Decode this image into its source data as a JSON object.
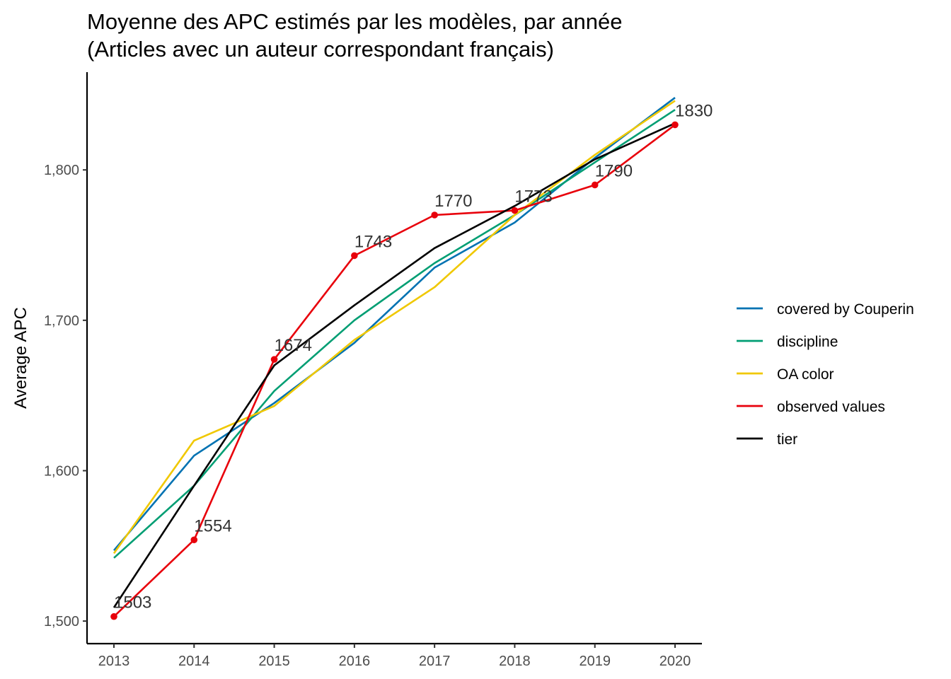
{
  "chart_data": {
    "type": "line",
    "title_lines": [
      "Moyenne des APC estimés par les modèles, par année",
      "(Articles avec un auteur correspondant français)"
    ],
    "xlabel": "",
    "ylabel": "Average APC",
    "x": [
      2013,
      2014,
      2015,
      2016,
      2017,
      2018,
      2019,
      2020
    ],
    "x_tick_labels": [
      "2013",
      "2014",
      "2015",
      "2016",
      "2017",
      "2018",
      "2019",
      "2020"
    ],
    "y_ticks": [
      1500,
      1600,
      1700,
      1800
    ],
    "y_tick_labels": [
      "1,500",
      "1,600",
      "1,700",
      "1,800"
    ],
    "ylim": [
      1485,
      1865
    ],
    "grid": false,
    "legend_position": "right",
    "series": [
      {
        "name": "covered by Couperin",
        "color": "#0072B2",
        "values": [
          1547,
          1610,
          1645,
          1685,
          1735,
          1765,
          1808,
          1848
        ]
      },
      {
        "name": "discipline",
        "color": "#009E73",
        "values": [
          1542,
          1590,
          1653,
          1700,
          1738,
          1770,
          1805,
          1840
        ]
      },
      {
        "name": "OA color",
        "color": "#F0C800",
        "values": [
          1545,
          1620,
          1643,
          1687,
          1722,
          1770,
          1810,
          1846
        ]
      },
      {
        "name": "observed values",
        "color": "#E8000B",
        "values": [
          1503,
          1554,
          1674,
          1743,
          1770,
          1773,
          1790,
          1830
        ],
        "markers": true,
        "data_labels": [
          "1503",
          "1554",
          "1674",
          "1743",
          "1770",
          "1773",
          "1790",
          "1830"
        ]
      },
      {
        "name": "tier",
        "color": "#000000",
        "values": [
          1509,
          1590,
          1670,
          1710,
          1748,
          1776,
          1807,
          1831
        ]
      }
    ]
  }
}
